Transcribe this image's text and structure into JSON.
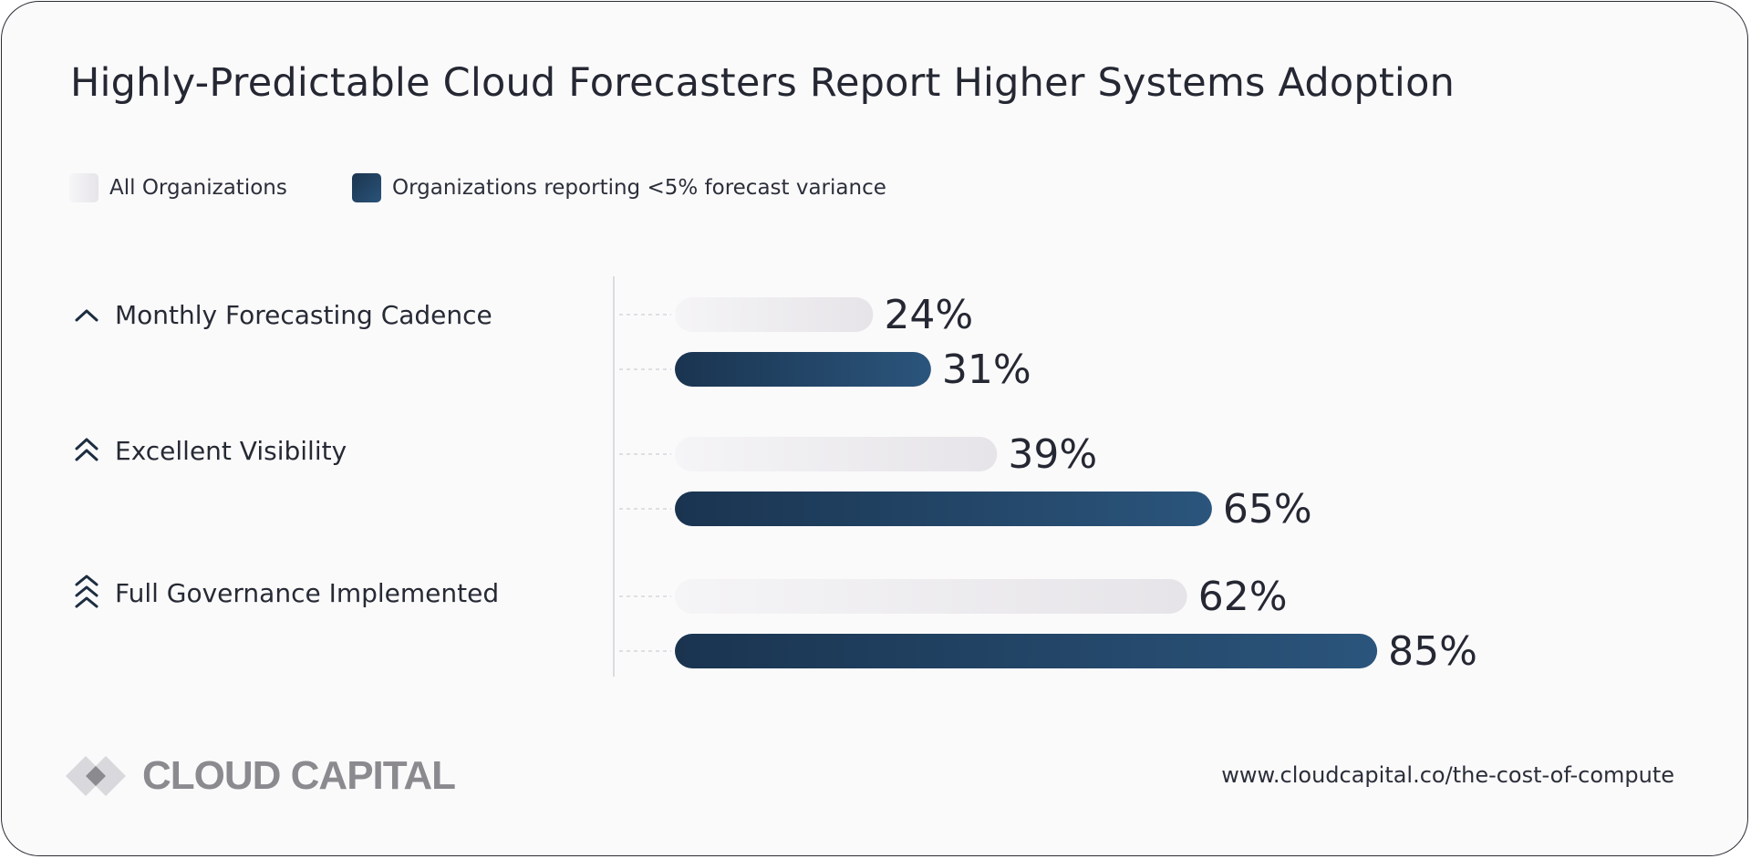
{
  "title": "Highly-Predictable Cloud Forecasters Report Higher Systems Adoption",
  "legend": {
    "all": "All Organizations",
    "predictable": "Organizations reporting <5% forecast variance"
  },
  "colors": {
    "all_start": "#f5f4f6",
    "all_end": "#e6e4e8",
    "pred_start": "#1a3450",
    "pred_end": "#2b557c",
    "label": "#252833",
    "axis": "#dcdadf"
  },
  "footer": {
    "brand": "CLOUD CAPITAL",
    "url": "www.cloudcapital.co/the-cost-of-compute"
  },
  "chart_data": {
    "type": "bar",
    "orientation": "horizontal",
    "title": "Highly-Predictable Cloud Forecasters Report Higher Systems Adoption",
    "categories": [
      "Monthly Forecasting Cadence",
      "Excellent Visibility",
      "Full Governance Implemented"
    ],
    "category_icons": [
      "chevron-up-icon",
      "double-chevron-up-icon",
      "triple-chevron-up-icon"
    ],
    "series": [
      {
        "name": "All Organizations",
        "values": [
          24,
          39,
          62
        ],
        "labels": [
          "24%",
          "39%",
          "62%"
        ]
      },
      {
        "name": "Organizations reporting <5% forecast variance",
        "values": [
          31,
          65,
          85
        ],
        "labels": [
          "31%",
          "65%",
          "85%"
        ]
      }
    ],
    "unit": "%",
    "xlim": [
      0,
      100
    ],
    "legend_position": "top-left",
    "grid": false
  }
}
